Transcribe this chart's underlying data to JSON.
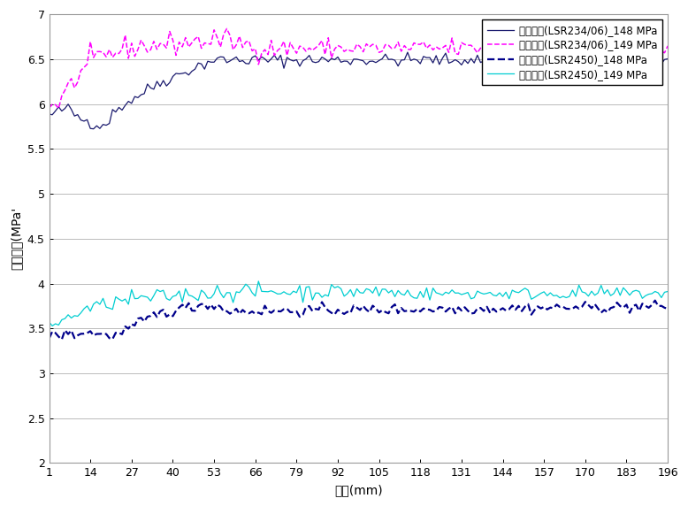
{
  "title": "",
  "xlabel": "길이(mm)",
  "ylabel": "등가응력(MPa'",
  "x_ticks": [
    1,
    14,
    27,
    40,
    53,
    66,
    79,
    92,
    105,
    118,
    131,
    144,
    157,
    170,
    183,
    196
  ],
  "ylim": [
    2,
    7
  ],
  "yticks": [
    2,
    2.5,
    3,
    3.5,
    4,
    4.5,
    5,
    5.5,
    6,
    6.5,
    7
  ],
  "legend_labels": [
    "등가응력(LSR234/06)_148 MPa",
    "등가응력(LSR234/06)_149 MPa",
    "등가응력(LSR2450)_148 MPa",
    "등가응력(LSR2450)_149 MPa"
  ],
  "colors": [
    "#1a1a6e",
    "#FF00FF",
    "#00008B",
    "#00CED1"
  ],
  "linestyles": [
    "-",
    "--",
    "--",
    "-"
  ],
  "linewidths": [
    0.9,
    1.1,
    1.6,
    0.9
  ],
  "background_color": "#ffffff",
  "grid_color": "#bbbbbb",
  "n_points": 196
}
